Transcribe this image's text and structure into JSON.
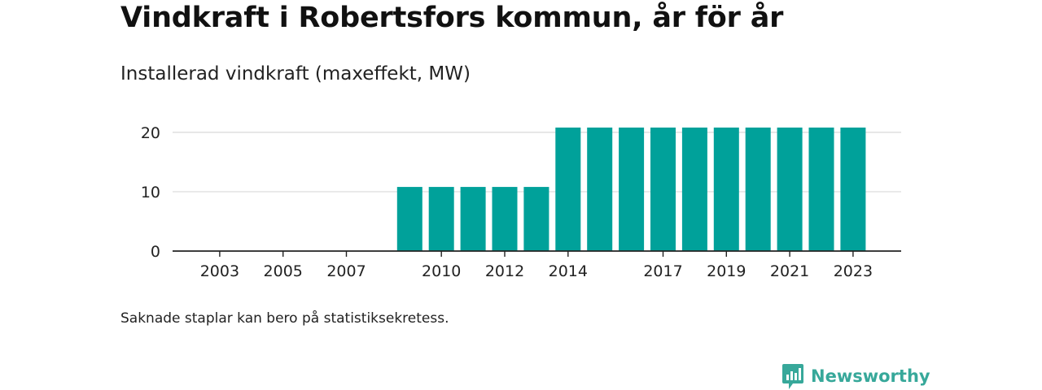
{
  "header": {
    "title": "Vindkraft i Robertsfors kommun, år för år",
    "subtitle": "Installerad vindkraft (maxeffekt, MW)"
  },
  "footnote": "Saknade staplar kan bero på statistiksekretess.",
  "brand": {
    "name": "Newsworthy",
    "icon": "newsworthy-logo-icon",
    "color": "#37a89a"
  },
  "chart_data": {
    "type": "bar",
    "title": "Vindkraft i Robertsfors kommun, år för år",
    "subtitle": "Installerad vindkraft (maxeffekt, MW)",
    "xlabel": "",
    "ylabel": "",
    "categories": [
      "2002",
      "2003",
      "2004",
      "2005",
      "2006",
      "2007",
      "2008",
      "2009",
      "2010",
      "2011",
      "2012",
      "2013",
      "2014",
      "2015",
      "2016",
      "2017",
      "2018",
      "2019",
      "2020",
      "2021",
      "2022",
      "2023"
    ],
    "values": [
      0,
      0,
      0,
      0,
      0,
      0,
      0,
      10.8,
      10.8,
      10.8,
      10.8,
      10.8,
      20.8,
      20.8,
      20.8,
      20.8,
      20.8,
      20.8,
      20.8,
      20.8,
      20.8,
      20.8
    ],
    "x_tick_labels": [
      "2003",
      "2005",
      "2007",
      "2010",
      "2012",
      "2014",
      "2017",
      "2019",
      "2021",
      "2023"
    ],
    "y_ticks": [
      0,
      10,
      20
    ],
    "ylim": [
      0,
      20.8
    ],
    "grid": true,
    "legend": "none",
    "bar_color": "#00a19a"
  }
}
